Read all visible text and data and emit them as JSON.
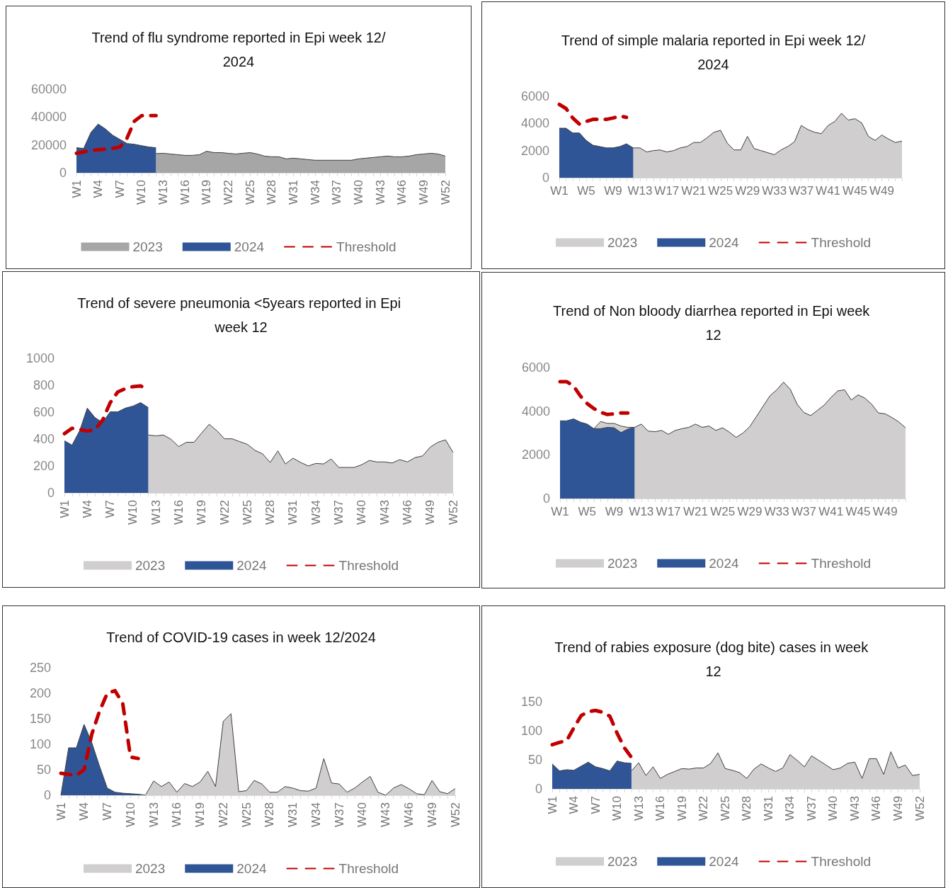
{
  "chart_data": [
    {
      "type": "area",
      "title": "Trend of flu syndrome reported in Epi week 12/2024",
      "categories": [
        "W1",
        null,
        null,
        "W4",
        null,
        null,
        "W7",
        null,
        null,
        "W10",
        null,
        null,
        "W13",
        null,
        null,
        "W16",
        null,
        null,
        "W19",
        null,
        null,
        "W22",
        null,
        null,
        "W25",
        null,
        null,
        "W28",
        null,
        null,
        "W31",
        null,
        null,
        "W34",
        null,
        null,
        "W37",
        null,
        null,
        "W40",
        null,
        null,
        "W43",
        null,
        null,
        "W46",
        null,
        null,
        "W49",
        null,
        null,
        "W52"
      ],
      "series": [
        {
          "name": "2023",
          "type": "area",
          "color": "#a6a6a6",
          "values": [
            null,
            null,
            null,
            null,
            null,
            null,
            null,
            null,
            null,
            null,
            null,
            13800,
            14000,
            13500,
            13000,
            12500,
            12500,
            13000,
            15500,
            14500,
            14500,
            14000,
            13500,
            14000,
            14500,
            13500,
            12000,
            11500,
            11500,
            10000,
            10500,
            10000,
            9500,
            9000,
            9000,
            9000,
            9000,
            9000,
            9000,
            10000,
            10500,
            11000,
            11500,
            12000,
            11500,
            11500,
            12000,
            13000,
            13500,
            14000,
            13500,
            12000
          ]
        },
        {
          "name": "2024",
          "type": "area",
          "color": "#2f5597",
          "values": [
            18000,
            17500,
            29000,
            35000,
            31500,
            27000,
            24000,
            21000,
            20500,
            19500,
            18500,
            18000,
            null,
            null,
            null,
            null,
            null,
            null,
            null,
            null,
            null,
            null,
            null,
            null,
            null,
            null,
            null,
            null,
            null,
            null,
            null,
            null,
            null,
            null,
            null,
            null,
            null,
            null,
            null,
            null,
            null,
            null,
            null,
            null,
            null,
            null,
            null,
            null,
            null,
            null,
            null,
            null
          ]
        },
        {
          "name": "Threshold",
          "type": "line",
          "color": "#c00000",
          "line_style": "dashed",
          "values": [
            14000,
            15000,
            16000,
            16500,
            17000,
            17500,
            18500,
            25000,
            37000,
            41000,
            41000,
            41000,
            null,
            null,
            null,
            null,
            null,
            null,
            null,
            null,
            null,
            null,
            null,
            null,
            null,
            null,
            null,
            null,
            null,
            null,
            null,
            null,
            null,
            null,
            null,
            null,
            null,
            null,
            null,
            null,
            null,
            null,
            null,
            null,
            null,
            null,
            null,
            null,
            null,
            null,
            null,
            null
          ]
        }
      ],
      "ylim": [
        0,
        60000
      ],
      "yticks": [
        0,
        20000,
        40000,
        60000
      ],
      "grid": false,
      "legend": "bottom",
      "marker": "none"
    },
    {
      "type": "area",
      "title": "Trend of simple malaria reported in Epi week 12/2024",
      "categories": [
        "W1",
        null,
        null,
        null,
        "W5",
        null,
        null,
        null,
        "W9",
        null,
        null,
        null,
        "W13",
        null,
        null,
        null,
        "W17",
        null,
        null,
        null,
        "W21",
        null,
        null,
        null,
        "W25",
        null,
        null,
        null,
        "W29",
        null,
        null,
        null,
        "W33",
        null,
        null,
        null,
        "W37",
        null,
        null,
        null,
        "W41",
        null,
        null,
        null,
        "W45",
        null,
        null,
        null,
        "W49",
        null,
        null,
        null
      ],
      "series": [
        {
          "name": "2023",
          "type": "area",
          "color": "#d0cece",
          "values": [
            null,
            null,
            null,
            null,
            null,
            null,
            null,
            null,
            null,
            null,
            null,
            2200,
            2200,
            1900,
            2000,
            2050,
            1900,
            2000,
            2200,
            2300,
            2600,
            2600,
            2950,
            3350,
            3500,
            2550,
            2050,
            2050,
            3050,
            2150,
            2000,
            1850,
            1700,
            2050,
            2300,
            2650,
            3850,
            3550,
            3350,
            3250,
            3850,
            4150,
            4750,
            4250,
            4350,
            4050,
            3050,
            2750,
            3150,
            2850,
            2600,
            2700
          ]
        },
        {
          "name": "2024",
          "type": "area",
          "color": "#2f5597",
          "values": [
            3650,
            3650,
            3300,
            3300,
            2750,
            2400,
            2300,
            2200,
            2200,
            2300,
            2500,
            2200,
            null,
            null,
            null,
            null,
            null,
            null,
            null,
            null,
            null,
            null,
            null,
            null,
            null,
            null,
            null,
            null,
            null,
            null,
            null,
            null,
            null,
            null,
            null,
            null,
            null,
            null,
            null,
            null,
            null,
            null,
            null,
            null,
            null,
            null,
            null,
            null,
            null,
            null,
            null,
            null
          ]
        },
        {
          "name": "Threshold",
          "type": "line",
          "color": "#c00000",
          "line_style": "dashed",
          "values": [
            5400,
            5100,
            4400,
            3950,
            4150,
            4300,
            4300,
            4300,
            4400,
            4550,
            4450,
            null,
            null,
            null,
            null,
            null,
            null,
            null,
            null,
            null,
            null,
            null,
            null,
            null,
            null,
            null,
            null,
            null,
            null,
            null,
            null,
            null,
            null,
            null,
            null,
            null,
            null,
            null,
            null,
            null,
            null,
            null,
            null,
            null,
            null,
            null,
            null,
            null,
            null,
            null,
            null,
            null
          ]
        }
      ],
      "ylim": [
        0,
        6000
      ],
      "yticks": [
        0,
        2000,
        4000,
        6000
      ],
      "grid": false,
      "legend": "bottom",
      "marker": "none"
    },
    {
      "type": "area",
      "title": "Trend of severe pneumonia <5years reported in Epi week 12",
      "categories": [
        "W1",
        null,
        null,
        "W4",
        null,
        null,
        "W7",
        null,
        null,
        "W10",
        null,
        null,
        "W13",
        null,
        null,
        "W16",
        null,
        null,
        "W19",
        null,
        null,
        "W22",
        null,
        null,
        "W25",
        null,
        null,
        "W28",
        null,
        null,
        "W31",
        null,
        null,
        "W34",
        null,
        null,
        "W37",
        null,
        null,
        "W40",
        null,
        null,
        "W43",
        null,
        null,
        "W46",
        null,
        null,
        "W49",
        null,
        null,
        "W52"
      ],
      "series": [
        {
          "name": "2023",
          "type": "area",
          "color": "#d0cece",
          "values": [
            null,
            null,
            null,
            null,
            null,
            null,
            null,
            null,
            null,
            null,
            null,
            430,
            424,
            430,
            398,
            344,
            376,
            376,
            445,
            510,
            462,
            402,
            402,
            381,
            361,
            316,
            290,
            226,
            312,
            215,
            258,
            226,
            200,
            219,
            215,
            252,
            189,
            189,
            189,
            209,
            241,
            230,
            230,
            222,
            247,
            230,
            262,
            275,
            340,
            376,
            394,
            301
          ]
        },
        {
          "name": "2024",
          "type": "area",
          "color": "#2f5597",
          "values": [
            387,
            355,
            462,
            630,
            560,
            523,
            602,
            602,
            630,
            645,
            671,
            634,
            null,
            null,
            null,
            null,
            null,
            null,
            null,
            null,
            null,
            null,
            null,
            null,
            null,
            null,
            null,
            null,
            null,
            null,
            null,
            null,
            null,
            null,
            null,
            null,
            null,
            null,
            null,
            null,
            null,
            null,
            null,
            null,
            null,
            null,
            null,
            null,
            null,
            null,
            null,
            null
          ]
        },
        {
          "name": "Threshold",
          "type": "line",
          "color": "#c00000",
          "line_style": "dashed",
          "values": [
            440,
            480,
            470,
            460,
            470,
            540,
            670,
            750,
            775,
            790,
            795,
            765,
            null,
            null,
            null,
            null,
            null,
            null,
            null,
            null,
            null,
            null,
            null,
            null,
            null,
            null,
            null,
            null,
            null,
            null,
            null,
            null,
            null,
            null,
            null,
            null,
            null,
            null,
            null,
            null,
            null,
            null,
            null,
            null,
            null,
            null,
            null,
            null,
            null,
            null,
            null,
            null
          ]
        }
      ],
      "ylim": [
        0,
        1000
      ],
      "yticks": [
        0,
        200,
        400,
        600,
        800,
        1000
      ],
      "grid": false,
      "legend": "bottom",
      "marker": "none"
    },
    {
      "type": "area",
      "title": "Trend of Non bloody diarrhea reported in Epi week 12",
      "categories": [
        "W1",
        null,
        null,
        null,
        "W5",
        null,
        null,
        null,
        "W9",
        null,
        null,
        null,
        "W13",
        null,
        null,
        null,
        "W17",
        null,
        null,
        null,
        "W21",
        null,
        null,
        null,
        "W25",
        null,
        null,
        null,
        "W29",
        null,
        null,
        null,
        "W33",
        null,
        null,
        null,
        "W37",
        null,
        null,
        null,
        "W41",
        null,
        null,
        null,
        "W45",
        null,
        null,
        null,
        "W49",
        null,
        null,
        null
      ],
      "series": [
        {
          "name": "2023",
          "type": "area",
          "color": "#d0cece",
          "values": [
            null,
            null,
            null,
            null,
            null,
            3200,
            3530,
            3440,
            3440,
            3320,
            3260,
            3260,
            3410,
            3090,
            3060,
            3120,
            2940,
            3120,
            3200,
            3260,
            3410,
            3260,
            3320,
            3120,
            3240,
            3040,
            2800,
            3000,
            3290,
            3760,
            4240,
            4710,
            4980,
            5330,
            5000,
            4320,
            3940,
            3800,
            4040,
            4280,
            4630,
            4930,
            4980,
            4510,
            4750,
            4600,
            4320,
            3920,
            3880,
            3710,
            3510,
            3240
          ]
        },
        {
          "name": "2024",
          "type": "area",
          "color": "#2f5597",
          "values": [
            3560,
            3560,
            3650,
            3500,
            3410,
            3200,
            3200,
            3260,
            3240,
            3020,
            3180,
            3260,
            null,
            null,
            null,
            null,
            null,
            null,
            null,
            null,
            null,
            null,
            null,
            null,
            null,
            null,
            null,
            null,
            null,
            null,
            null,
            null,
            null,
            null,
            null,
            null,
            null,
            null,
            null,
            null,
            null,
            null,
            null,
            null,
            null,
            null,
            null,
            null,
            null,
            null,
            null,
            null
          ]
        },
        {
          "name": "Threshold",
          "type": "line",
          "color": "#c00000",
          "line_style": "dashed",
          "values": [
            5350,
            5350,
            5150,
            4700,
            4350,
            4120,
            3950,
            3850,
            3880,
            3920,
            3920,
            null,
            null,
            null,
            null,
            null,
            null,
            null,
            null,
            null,
            null,
            null,
            null,
            null,
            null,
            null,
            null,
            null,
            null,
            null,
            null,
            null,
            null,
            null,
            null,
            null,
            null,
            null,
            null,
            null,
            null,
            null,
            null,
            null,
            null,
            null,
            null,
            null,
            null,
            null,
            null,
            null
          ]
        }
      ],
      "ylim": [
        0,
        6000
      ],
      "yticks": [
        0,
        2000,
        4000,
        6000
      ],
      "grid": false,
      "legend": "bottom",
      "marker": "none"
    },
    {
      "type": "area",
      "title": "Trend of COVID-19 cases in week 12/2024",
      "categories": [
        "W1",
        null,
        null,
        "W4",
        null,
        null,
        "W7",
        null,
        null,
        "W10",
        null,
        null,
        "W13",
        null,
        null,
        "W16",
        null,
        null,
        "W19",
        null,
        null,
        "W22",
        null,
        null,
        "W25",
        null,
        null,
        "W28",
        null,
        null,
        "W31",
        null,
        null,
        "W34",
        null,
        null,
        "W37",
        null,
        null,
        "W40",
        null,
        null,
        "W43",
        null,
        null,
        "W46",
        null,
        null,
        "W49",
        null,
        null,
        "W52"
      ],
      "series": [
        {
          "name": "2023",
          "type": "area",
          "color": "#d0cece",
          "values": [
            null,
            null,
            null,
            null,
            null,
            null,
            null,
            null,
            null,
            null,
            null,
            2,
            28,
            17,
            26,
            6,
            23,
            17,
            26,
            47,
            17,
            145,
            160,
            7,
            9,
            29,
            22,
            6,
            6,
            17,
            14,
            9,
            8,
            14,
            72,
            24,
            22,
            6,
            14,
            26,
            37,
            6,
            0,
            14,
            21,
            13,
            3,
            1,
            29,
            7,
            3,
            13
          ]
        },
        {
          "name": "2024",
          "type": "area",
          "color": "#2f5597",
          "values": [
            0,
            93,
            93,
            139,
            103,
            57,
            14,
            6,
            4,
            3,
            2,
            0,
            null,
            null,
            null,
            null,
            null,
            null,
            null,
            null,
            null,
            null,
            null,
            null,
            null,
            null,
            null,
            null,
            null,
            null,
            null,
            null,
            null,
            null,
            null,
            null,
            null,
            null,
            null,
            null,
            null,
            null,
            null,
            null,
            null,
            null,
            null,
            null,
            null,
            null,
            null,
            null
          ]
        },
        {
          "name": "Threshold",
          "type": "line",
          "color": "#c00000",
          "line_style": "dashed",
          "values": [
            43,
            41,
            39,
            50,
            120,
            165,
            200,
            205,
            180,
            75,
            72,
            null,
            null,
            null,
            null,
            null,
            null,
            null,
            null,
            null,
            null,
            null,
            null,
            null,
            null,
            null,
            null,
            null,
            null,
            null,
            null,
            null,
            null,
            null,
            null,
            null,
            null,
            null,
            null,
            null,
            null,
            null,
            null,
            null,
            null,
            null,
            null,
            null,
            null,
            null,
            null,
            null
          ]
        }
      ],
      "ylim": [
        0,
        250
      ],
      "yticks": [
        0,
        50,
        100,
        150,
        200,
        250
      ],
      "grid": false,
      "legend": "bottom",
      "marker": "none"
    },
    {
      "type": "area",
      "title": "Trend of rabies exposure (dog bite) cases in week 12",
      "categories": [
        "W1",
        null,
        null,
        "W4",
        null,
        null,
        "W7",
        null,
        null,
        "W10",
        null,
        null,
        "W13",
        null,
        null,
        "W16",
        null,
        null,
        "W19",
        null,
        null,
        "W22",
        null,
        null,
        "W25",
        null,
        null,
        "W28",
        null,
        null,
        "W31",
        null,
        null,
        "W34",
        null,
        null,
        "W37",
        null,
        null,
        "W40",
        null,
        null,
        "W43",
        null,
        null,
        "W46",
        null,
        null,
        "W49",
        null,
        null,
        "W52"
      ],
      "series": [
        {
          "name": "2023",
          "type": "area",
          "color": "#d0cece",
          "values": [
            null,
            null,
            null,
            null,
            null,
            null,
            null,
            null,
            null,
            null,
            null,
            31,
            45,
            23,
            38,
            18,
            25,
            30,
            35,
            34,
            36,
            36,
            44,
            62,
            35,
            32,
            28,
            18,
            34,
            43,
            36,
            30,
            36,
            59,
            49,
            38,
            57,
            49,
            41,
            33,
            36,
            44,
            46,
            18,
            52,
            52,
            25,
            64,
            36,
            41,
            23,
            25
          ]
        },
        {
          "name": "2024",
          "type": "area",
          "color": "#2f5597",
          "values": [
            43,
            31,
            33,
            32,
            39,
            46,
            38,
            35,
            31,
            48,
            45,
            44,
            null,
            null,
            null,
            null,
            null,
            null,
            null,
            null,
            null,
            null,
            null,
            null,
            null,
            null,
            null,
            null,
            null,
            null,
            null,
            null,
            null,
            null,
            null,
            null,
            null,
            null,
            null,
            null,
            null,
            null,
            null,
            null,
            null,
            null,
            null,
            null,
            null,
            null,
            null,
            null
          ]
        },
        {
          "name": "Threshold",
          "type": "line",
          "color": "#c00000",
          "line_style": "dashed",
          "values": [
            76,
            80,
            83,
            105,
            126,
            133,
            135,
            132,
            125,
            96,
            71,
            54,
            null,
            null,
            null,
            null,
            null,
            null,
            null,
            null,
            null,
            null,
            null,
            null,
            null,
            null,
            null,
            null,
            null,
            null,
            null,
            null,
            null,
            null,
            null,
            null,
            null,
            null,
            null,
            null,
            null,
            null,
            null,
            null,
            null,
            null,
            null,
            null,
            null,
            null,
            null,
            null
          ]
        }
      ],
      "ylim": [
        0,
        150
      ],
      "yticks": [
        0,
        50,
        100,
        150
      ],
      "grid": false,
      "legend": "bottom",
      "marker": "none"
    }
  ]
}
